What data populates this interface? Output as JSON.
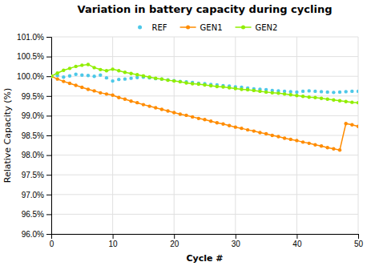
{
  "chart_data": {
    "type": "line",
    "title": "Variation in battery capacity during cycling",
    "x_label": "Cycle #",
    "y_label": "Relative Capacity (%)",
    "x": [
      0,
      1,
      2,
      3,
      4,
      5,
      6,
      7,
      8,
      9,
      10,
      11,
      12,
      13,
      14,
      15,
      16,
      17,
      18,
      19,
      20,
      21,
      22,
      23,
      24,
      25,
      26,
      27,
      28,
      29,
      30,
      31,
      32,
      33,
      34,
      35,
      36,
      37,
      38,
      39,
      40,
      41,
      42,
      43,
      44,
      45,
      46,
      47,
      48,
      49,
      50
    ],
    "series": [
      {
        "name": "REF",
        "color": "#4dc8e8",
        "marker": "circle",
        "line_style": "none",
        "values": [
          100.0,
          100.02,
          99.98,
          100.01,
          100.05,
          100.03,
          100.02,
          100.0,
          100.03,
          99.96,
          99.88,
          99.92,
          99.93,
          99.95,
          99.97,
          99.98,
          99.96,
          99.94,
          99.93,
          99.91,
          99.89,
          99.87,
          99.86,
          99.84,
          99.82,
          99.81,
          99.79,
          99.78,
          99.76,
          99.75,
          99.73,
          99.72,
          99.7,
          99.68,
          99.67,
          99.66,
          99.64,
          99.63,
          99.62,
          99.61,
          99.6,
          99.62,
          99.63,
          99.62,
          99.61,
          99.6,
          99.59,
          99.6,
          99.61,
          99.62,
          99.62
        ]
      },
      {
        "name": "GEN1",
        "color": "#ff8c00",
        "marker": "circle",
        "line_style": "solid",
        "values": [
          100.0,
          99.93,
          99.87,
          99.82,
          99.77,
          99.72,
          99.67,
          99.63,
          99.58,
          99.55,
          99.52,
          99.46,
          99.42,
          99.37,
          99.33,
          99.28,
          99.24,
          99.2,
          99.16,
          99.12,
          99.08,
          99.04,
          99.01,
          98.97,
          98.93,
          98.9,
          98.86,
          98.82,
          98.79,
          98.75,
          98.71,
          98.68,
          98.64,
          98.61,
          98.57,
          98.54,
          98.5,
          98.47,
          98.43,
          98.4,
          98.37,
          98.33,
          98.3,
          98.26,
          98.23,
          98.19,
          98.16,
          98.13,
          98.8,
          98.77,
          98.73
        ]
      },
      {
        "name": "GEN2",
        "color": "#90ee00",
        "marker": "circle",
        "line_style": "solid",
        "values": [
          100.0,
          100.08,
          100.15,
          100.2,
          100.25,
          100.28,
          100.3,
          100.22,
          100.17,
          100.14,
          100.18,
          100.14,
          100.1,
          100.07,
          100.04,
          100.01,
          99.98,
          99.95,
          99.93,
          99.9,
          99.88,
          99.86,
          99.83,
          99.81,
          99.8,
          99.78,
          99.76,
          99.74,
          99.73,
          99.71,
          99.69,
          99.67,
          99.66,
          99.64,
          99.62,
          99.6,
          99.58,
          99.57,
          99.55,
          99.53,
          99.51,
          99.49,
          99.47,
          99.46,
          99.44,
          99.42,
          99.4,
          99.38,
          99.36,
          99.34,
          99.33
        ]
      }
    ],
    "xlim": [
      0,
      50
    ],
    "ylim": [
      96.0,
      101.0
    ],
    "xticks": [
      0,
      10,
      20,
      30,
      40,
      50
    ],
    "yticks": [
      {
        "value": 96.0,
        "label": "96.0%"
      },
      {
        "value": 96.5,
        "label": "96.5%"
      },
      {
        "value": 97.0,
        "label": "97.0%"
      },
      {
        "value": 97.5,
        "label": "97.5%"
      },
      {
        "value": 98.0,
        "label": "98.0%"
      },
      {
        "value": 98.5,
        "label": "98.5%"
      },
      {
        "value": 99.0,
        "label": "99.0%"
      },
      {
        "value": 99.5,
        "label": "99.5%"
      },
      {
        "value": 100.0,
        "label": "100.0%"
      },
      {
        "value": 100.5,
        "label": "100.5%"
      },
      {
        "value": 101.0,
        "label": "101.0%"
      }
    ],
    "grid": true,
    "legend": "upper center"
  }
}
